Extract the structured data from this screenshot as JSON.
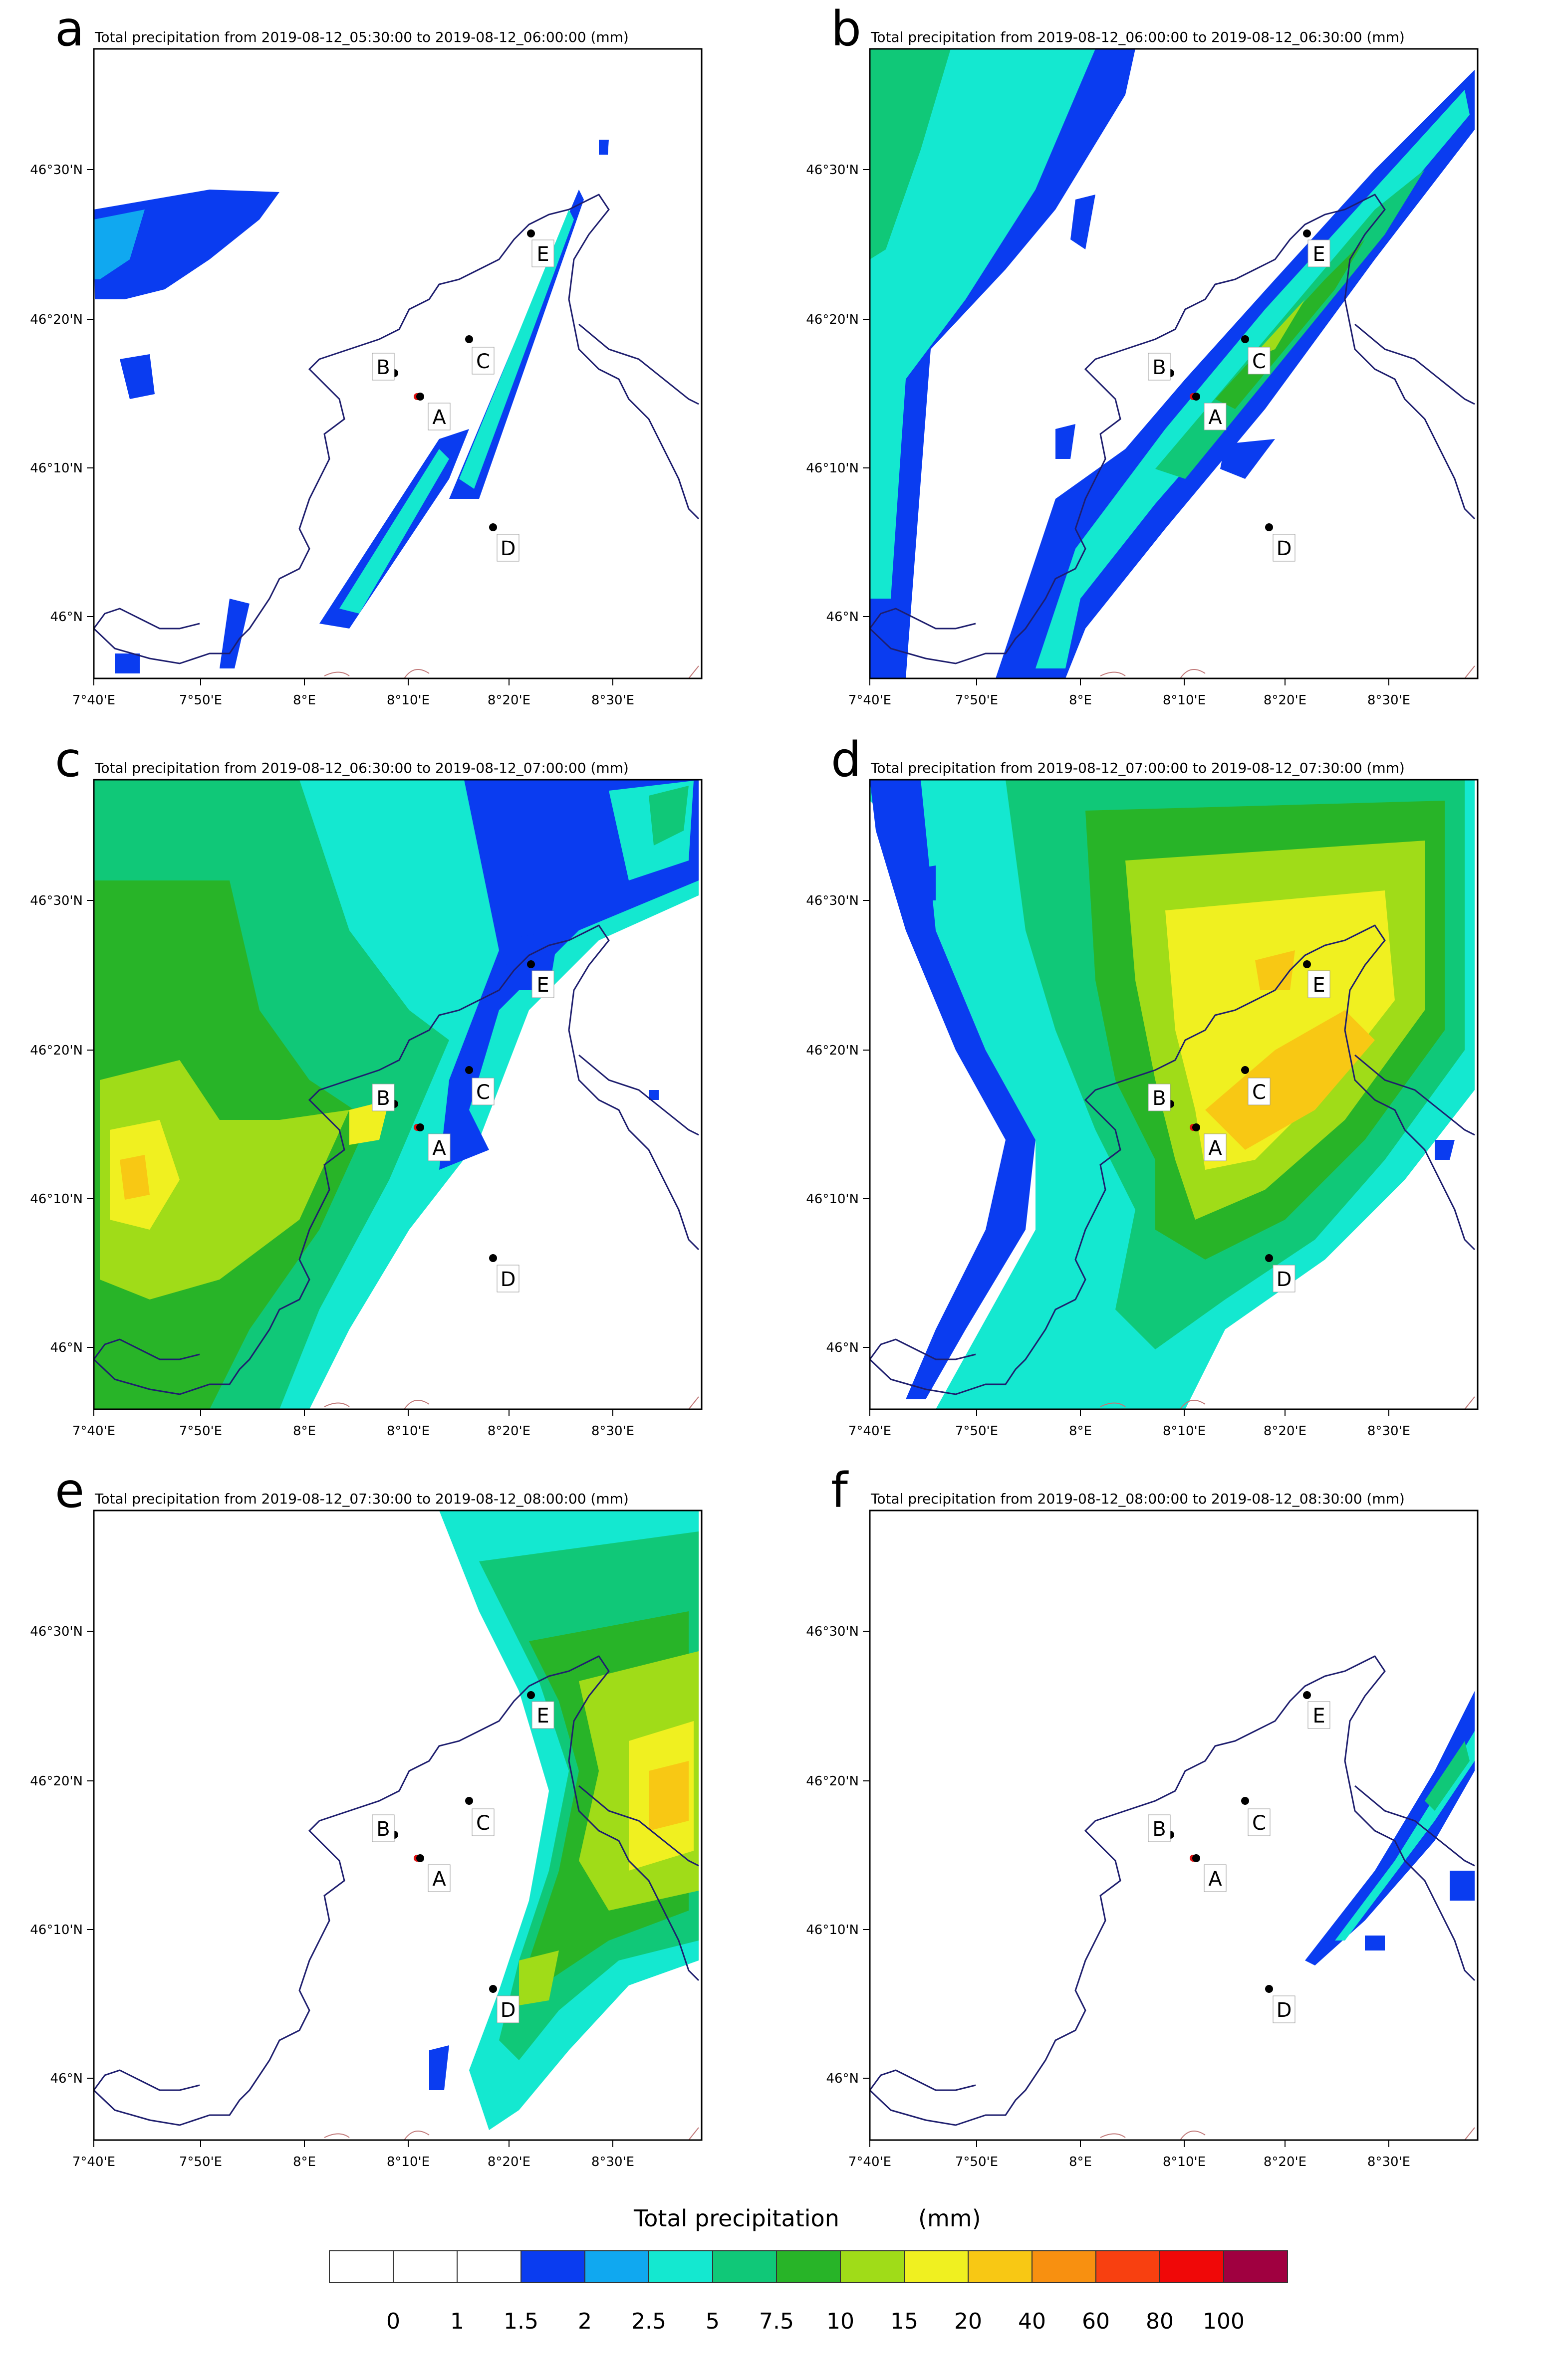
{
  "panels": [
    {
      "letter": "a",
      "title": "Total precipitation  from 2019-08-12_05:30:00 to 2019-08-12_06:00:00  (mm)"
    },
    {
      "letter": "b",
      "title": "Total precipitation  from 2019-08-12_06:00:00 to 2019-08-12_06:30:00  (mm)"
    },
    {
      "letter": "c",
      "title": "Total precipitation  from 2019-08-12_06:30:00 to 2019-08-12_07:00:00  (mm)"
    },
    {
      "letter": "d",
      "title": "Total precipitation  from 2019-08-12_07:00:00 to 2019-08-12_07:30:00  (mm)"
    },
    {
      "letter": "e",
      "title": "Total precipitation  from 2019-08-12_07:30:00 to 2019-08-12_08:00:00  (mm)"
    },
    {
      "letter": "f",
      "title": "Total precipitation  from 2019-08-12_08:00:00 to 2019-08-12_08:30:00  (mm)"
    }
  ],
  "axes": {
    "lat_labels": [
      "46°30'N",
      "46°20'N",
      "46°10'N",
      "46°N"
    ],
    "lon_labels": [
      "7°40'E",
      "7°50'E",
      "8°E",
      "8°10'E",
      "8°20'E",
      "8°30'E"
    ]
  },
  "stations": [
    "A",
    "B",
    "C",
    "D",
    "E"
  ],
  "legend": {
    "title": "Total precipitation",
    "unit": "(mm)",
    "labels": [
      "0",
      "1",
      "1.5",
      "2",
      "2.5",
      "5",
      "7.5",
      "10",
      "15",
      "20",
      "40",
      "60",
      "80",
      "100"
    ],
    "colors": [
      "#ffffff",
      "#ffffff",
      "#ffffff",
      "#0a3cf0",
      "#10a8f0",
      "#14e8d0",
      "#10c878",
      "#28b428",
      "#a0dc18",
      "#f0f020",
      "#f8c814",
      "#f89010",
      "#f84010",
      "#f00808",
      "#a00040"
    ]
  },
  "colors": {
    "blue": "#0a3cf0",
    "lightblue": "#10a8f0",
    "cyan": "#14e8d0",
    "green": "#10c878",
    "darkgreen": "#28b428",
    "lime": "#a0dc18",
    "yellow": "#f0f020",
    "orange": "#f8c814",
    "border": "#1e1e6e",
    "lake": "#c07878"
  }
}
